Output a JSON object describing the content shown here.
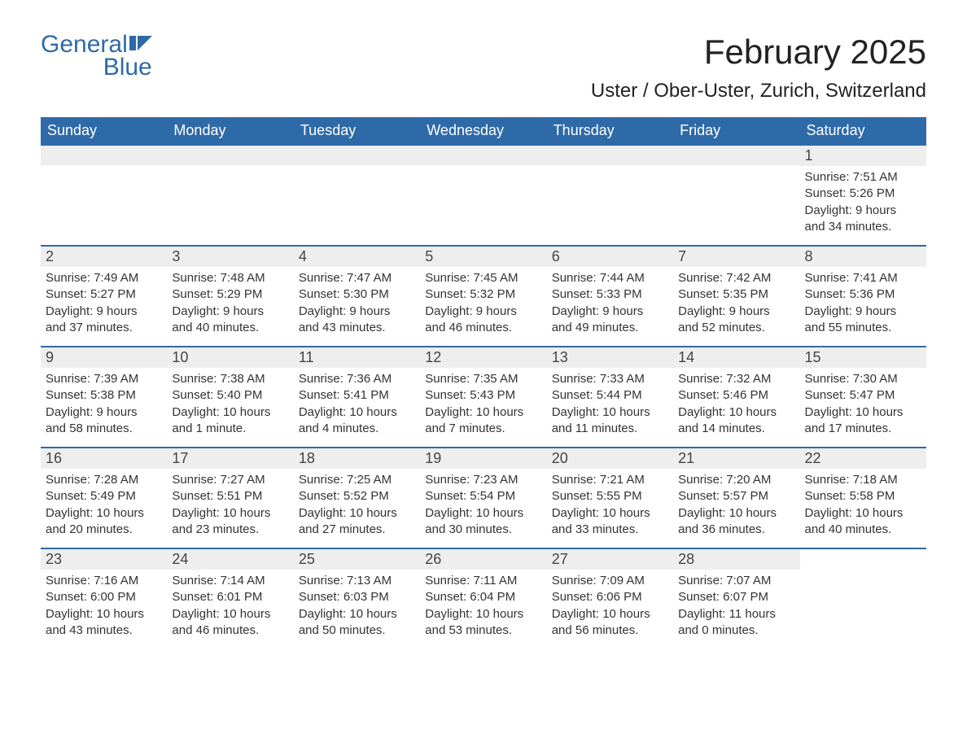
{
  "logo": {
    "text_general": "General",
    "text_blue": "Blue",
    "general_color": "#2f6aa8",
    "blue_color": "#2f6aa8",
    "icon_color": "#2f6aa8"
  },
  "title": {
    "month": "February 2025",
    "location": "Uster / Ober-Uster, Zurich, Switzerland",
    "title_fontsize": 42,
    "location_fontsize": 24
  },
  "colors": {
    "header_bg": "#2f6aa8",
    "header_text": "#ffffff",
    "daynum_bg": "#eeeeee",
    "row_border": "#2f6aa8",
    "body_text": "#333333",
    "page_bg": "#ffffff"
  },
  "weekdays": [
    "Sunday",
    "Monday",
    "Tuesday",
    "Wednesday",
    "Thursday",
    "Friday",
    "Saturday"
  ],
  "weeks": [
    [
      {
        "empty": true
      },
      {
        "empty": true
      },
      {
        "empty": true
      },
      {
        "empty": true
      },
      {
        "empty": true
      },
      {
        "empty": true
      },
      {
        "day": "1",
        "sunrise": "Sunrise: 7:51 AM",
        "sunset": "Sunset: 5:26 PM",
        "daylight1": "Daylight: 9 hours",
        "daylight2": "and 34 minutes."
      }
    ],
    [
      {
        "day": "2",
        "sunrise": "Sunrise: 7:49 AM",
        "sunset": "Sunset: 5:27 PM",
        "daylight1": "Daylight: 9 hours",
        "daylight2": "and 37 minutes."
      },
      {
        "day": "3",
        "sunrise": "Sunrise: 7:48 AM",
        "sunset": "Sunset: 5:29 PM",
        "daylight1": "Daylight: 9 hours",
        "daylight2": "and 40 minutes."
      },
      {
        "day": "4",
        "sunrise": "Sunrise: 7:47 AM",
        "sunset": "Sunset: 5:30 PM",
        "daylight1": "Daylight: 9 hours",
        "daylight2": "and 43 minutes."
      },
      {
        "day": "5",
        "sunrise": "Sunrise: 7:45 AM",
        "sunset": "Sunset: 5:32 PM",
        "daylight1": "Daylight: 9 hours",
        "daylight2": "and 46 minutes."
      },
      {
        "day": "6",
        "sunrise": "Sunrise: 7:44 AM",
        "sunset": "Sunset: 5:33 PM",
        "daylight1": "Daylight: 9 hours",
        "daylight2": "and 49 minutes."
      },
      {
        "day": "7",
        "sunrise": "Sunrise: 7:42 AM",
        "sunset": "Sunset: 5:35 PM",
        "daylight1": "Daylight: 9 hours",
        "daylight2": "and 52 minutes."
      },
      {
        "day": "8",
        "sunrise": "Sunrise: 7:41 AM",
        "sunset": "Sunset: 5:36 PM",
        "daylight1": "Daylight: 9 hours",
        "daylight2": "and 55 minutes."
      }
    ],
    [
      {
        "day": "9",
        "sunrise": "Sunrise: 7:39 AM",
        "sunset": "Sunset: 5:38 PM",
        "daylight1": "Daylight: 9 hours",
        "daylight2": "and 58 minutes."
      },
      {
        "day": "10",
        "sunrise": "Sunrise: 7:38 AM",
        "sunset": "Sunset: 5:40 PM",
        "daylight1": "Daylight: 10 hours",
        "daylight2": "and 1 minute."
      },
      {
        "day": "11",
        "sunrise": "Sunrise: 7:36 AM",
        "sunset": "Sunset: 5:41 PM",
        "daylight1": "Daylight: 10 hours",
        "daylight2": "and 4 minutes."
      },
      {
        "day": "12",
        "sunrise": "Sunrise: 7:35 AM",
        "sunset": "Sunset: 5:43 PM",
        "daylight1": "Daylight: 10 hours",
        "daylight2": "and 7 minutes."
      },
      {
        "day": "13",
        "sunrise": "Sunrise: 7:33 AM",
        "sunset": "Sunset: 5:44 PM",
        "daylight1": "Daylight: 10 hours",
        "daylight2": "and 11 minutes."
      },
      {
        "day": "14",
        "sunrise": "Sunrise: 7:32 AM",
        "sunset": "Sunset: 5:46 PM",
        "daylight1": "Daylight: 10 hours",
        "daylight2": "and 14 minutes."
      },
      {
        "day": "15",
        "sunrise": "Sunrise: 7:30 AM",
        "sunset": "Sunset: 5:47 PM",
        "daylight1": "Daylight: 10 hours",
        "daylight2": "and 17 minutes."
      }
    ],
    [
      {
        "day": "16",
        "sunrise": "Sunrise: 7:28 AM",
        "sunset": "Sunset: 5:49 PM",
        "daylight1": "Daylight: 10 hours",
        "daylight2": "and 20 minutes."
      },
      {
        "day": "17",
        "sunrise": "Sunrise: 7:27 AM",
        "sunset": "Sunset: 5:51 PM",
        "daylight1": "Daylight: 10 hours",
        "daylight2": "and 23 minutes."
      },
      {
        "day": "18",
        "sunrise": "Sunrise: 7:25 AM",
        "sunset": "Sunset: 5:52 PM",
        "daylight1": "Daylight: 10 hours",
        "daylight2": "and 27 minutes."
      },
      {
        "day": "19",
        "sunrise": "Sunrise: 7:23 AM",
        "sunset": "Sunset: 5:54 PM",
        "daylight1": "Daylight: 10 hours",
        "daylight2": "and 30 minutes."
      },
      {
        "day": "20",
        "sunrise": "Sunrise: 7:21 AM",
        "sunset": "Sunset: 5:55 PM",
        "daylight1": "Daylight: 10 hours",
        "daylight2": "and 33 minutes."
      },
      {
        "day": "21",
        "sunrise": "Sunrise: 7:20 AM",
        "sunset": "Sunset: 5:57 PM",
        "daylight1": "Daylight: 10 hours",
        "daylight2": "and 36 minutes."
      },
      {
        "day": "22",
        "sunrise": "Sunrise: 7:18 AM",
        "sunset": "Sunset: 5:58 PM",
        "daylight1": "Daylight: 10 hours",
        "daylight2": "and 40 minutes."
      }
    ],
    [
      {
        "day": "23",
        "sunrise": "Sunrise: 7:16 AM",
        "sunset": "Sunset: 6:00 PM",
        "daylight1": "Daylight: 10 hours",
        "daylight2": "and 43 minutes."
      },
      {
        "day": "24",
        "sunrise": "Sunrise: 7:14 AM",
        "sunset": "Sunset: 6:01 PM",
        "daylight1": "Daylight: 10 hours",
        "daylight2": "and 46 minutes."
      },
      {
        "day": "25",
        "sunrise": "Sunrise: 7:13 AM",
        "sunset": "Sunset: 6:03 PM",
        "daylight1": "Daylight: 10 hours",
        "daylight2": "and 50 minutes."
      },
      {
        "day": "26",
        "sunrise": "Sunrise: 7:11 AM",
        "sunset": "Sunset: 6:04 PM",
        "daylight1": "Daylight: 10 hours",
        "daylight2": "and 53 minutes."
      },
      {
        "day": "27",
        "sunrise": "Sunrise: 7:09 AM",
        "sunset": "Sunset: 6:06 PM",
        "daylight1": "Daylight: 10 hours",
        "daylight2": "and 56 minutes."
      },
      {
        "day": "28",
        "sunrise": "Sunrise: 7:07 AM",
        "sunset": "Sunset: 6:07 PM",
        "daylight1": "Daylight: 11 hours",
        "daylight2": "and 0 minutes."
      },
      {
        "empty": true
      }
    ]
  ]
}
